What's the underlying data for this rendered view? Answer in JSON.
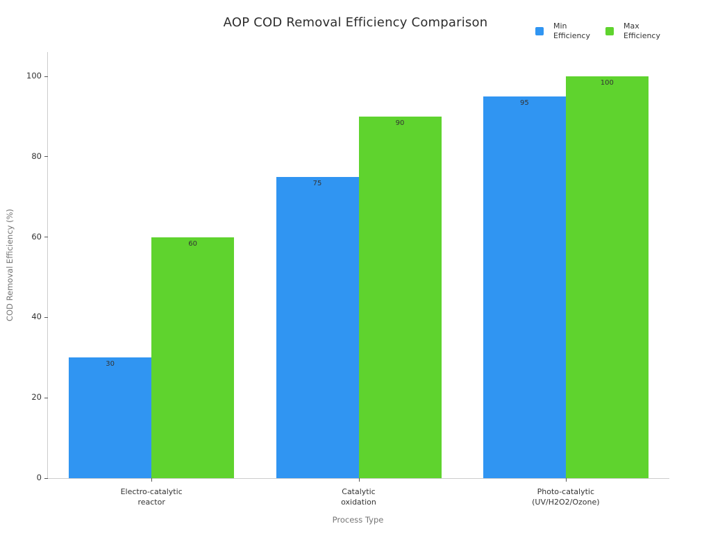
{
  "title": "AOP COD Removal Efficiency Comparison",
  "legend": {
    "items": [
      {
        "label": "Min\nEfficiency",
        "color": "#3095f2"
      },
      {
        "label": "Max\nEfficiency",
        "color": "#5fd32e"
      }
    ]
  },
  "axes": {
    "x_title": "Process Type",
    "y_title": "COD Removal Efficiency (%)"
  },
  "chart_data": {
    "type": "bar",
    "title": "AOP COD Removal Efficiency Comparison",
    "xlabel": "Process Type",
    "ylabel": "COD Removal Efficiency (%)",
    "categories": [
      "Electro-catalytic\nreactor",
      "Catalytic\noxidation",
      "Photo-catalytic\n(UV/H2O2/Ozone)"
    ],
    "series": [
      {
        "name": "Min Efficiency",
        "color": "#3095f2",
        "values": [
          30,
          75,
          95
        ]
      },
      {
        "name": "Max Efficiency",
        "color": "#5fd32e",
        "values": [
          60,
          90,
          100
        ]
      }
    ],
    "ylim": [
      0,
      100
    ],
    "yticks": [
      0,
      20,
      40,
      60,
      80,
      100
    ],
    "grid": false,
    "legend_position": "top-right",
    "bar_value_labels": true,
    "axis_color": "#cccccc"
  }
}
